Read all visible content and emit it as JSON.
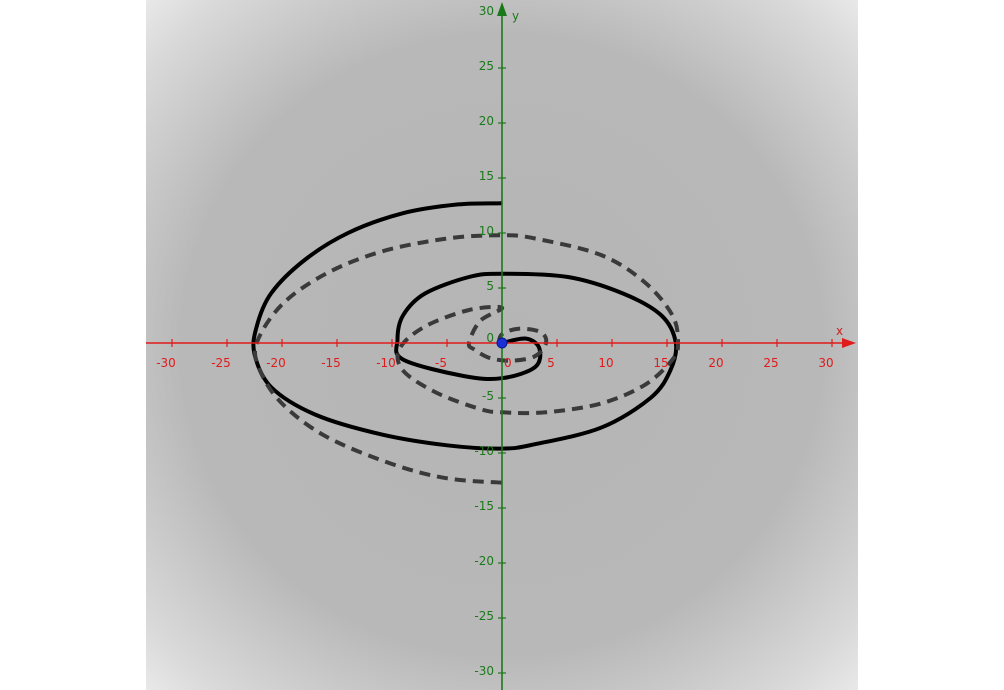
{
  "chart_data": {
    "type": "line",
    "title": "",
    "xlabel": "x",
    "ylabel": "y",
    "xlim": [
      -32,
      32
    ],
    "ylim": [
      -31,
      31
    ],
    "grid": false,
    "colors": {
      "background": "#b5b5b5",
      "x_axis": "#e01b1b",
      "y_axis": "#1a7a1a",
      "curve_solid": "#000000",
      "curve_dashed": "#3a3a3a",
      "point": "#1a2fd6"
    },
    "x_ticks": [
      {
        "value": -30,
        "label": "-30"
      },
      {
        "value": -25,
        "label": "-25"
      },
      {
        "value": -20,
        "label": "-20"
      },
      {
        "value": -15,
        "label": "-15"
      },
      {
        "value": -10,
        "label": "-10"
      },
      {
        "value": -5,
        "label": "-5"
      },
      {
        "value": 0,
        "label": "0"
      },
      {
        "value": 5,
        "label": "5"
      },
      {
        "value": 10,
        "label": "10"
      },
      {
        "value": 15,
        "label": "15"
      },
      {
        "value": 20,
        "label": "20"
      },
      {
        "value": 25,
        "label": "25"
      },
      {
        "value": 30,
        "label": "30"
      }
    ],
    "y_ticks": [
      {
        "value": 30,
        "label": "30"
      },
      {
        "value": 25,
        "label": "25"
      },
      {
        "value": 20,
        "label": "20"
      },
      {
        "value": 15,
        "label": "15"
      },
      {
        "value": 10,
        "label": "10"
      },
      {
        "value": 5,
        "label": "5"
      },
      {
        "value": 0,
        "label": "0"
      },
      {
        "value": -5,
        "label": "-5"
      },
      {
        "value": -10,
        "label": "-10"
      },
      {
        "value": -15,
        "label": "-15"
      },
      {
        "value": -20,
        "label": "-20"
      },
      {
        "value": -25,
        "label": "-25"
      },
      {
        "value": -30,
        "label": "-30"
      }
    ],
    "series": [
      {
        "style": "solid",
        "points": [
          [
            0,
            0
          ],
          [
            2.2,
            0.4
          ],
          [
            3.4,
            -0.5
          ],
          [
            3.0,
            -2.2
          ],
          [
            0,
            -3.2
          ],
          [
            -3.5,
            -3.0
          ],
          [
            -9.0,
            -1.5
          ],
          [
            -9.5,
            0.3
          ],
          [
            -9.0,
            2.5
          ],
          [
            -7.0,
            4.5
          ],
          [
            -3.0,
            6.0
          ],
          [
            0,
            6.3
          ],
          [
            6.0,
            6.0
          ],
          [
            11.0,
            4.5
          ],
          [
            14.5,
            2.5
          ],
          [
            15.8,
            0
          ],
          [
            15.3,
            -2.5
          ],
          [
            13.5,
            -5.0
          ],
          [
            9.0,
            -7.7
          ],
          [
            3.0,
            -9.2
          ],
          [
            0,
            -9.6
          ],
          [
            -5.0,
            -9.3
          ],
          [
            -11.0,
            -8.3
          ],
          [
            -17.0,
            -6.5
          ],
          [
            -21.0,
            -4.0
          ],
          [
            -22.5,
            -1.0
          ],
          [
            -22.3,
            1.5
          ],
          [
            -21.0,
            4.5
          ],
          [
            -18.0,
            7.5
          ],
          [
            -14.0,
            10.0
          ],
          [
            -9.0,
            11.8
          ],
          [
            -4.0,
            12.6
          ],
          [
            0,
            12.7
          ]
        ]
      },
      {
        "style": "dashed",
        "points": [
          [
            -0.3,
            0
          ],
          [
            0,
            0.8
          ],
          [
            1.5,
            1.3
          ],
          [
            3.5,
            1.0
          ],
          [
            4.0,
            0
          ],
          [
            3.0,
            -1.2
          ],
          [
            1.0,
            -1.6
          ],
          [
            -1.0,
            -1.4
          ],
          [
            -2.5,
            -0.6
          ],
          [
            -3.0,
            0
          ],
          [
            -2.0,
            2.0
          ],
          [
            0,
            3.2
          ],
          [
            -3.0,
            3.0
          ],
          [
            -7.0,
            1.5
          ],
          [
            -9.3,
            -0.5
          ],
          [
            -9.0,
            -2.5
          ],
          [
            -6.0,
            -4.5
          ],
          [
            -2.0,
            -6.0
          ],
          [
            0,
            -6.3
          ],
          [
            4.0,
            -6.3
          ],
          [
            9.0,
            -5.5
          ],
          [
            13.0,
            -3.8
          ],
          [
            15.5,
            -1.5
          ],
          [
            16.0,
            0
          ],
          [
            15.5,
            2.5
          ],
          [
            13.0,
            5.5
          ],
          [
            9.0,
            8.0
          ],
          [
            3.0,
            9.5
          ],
          [
            0,
            9.8
          ],
          [
            -5.0,
            9.5
          ],
          [
            -11.0,
            8.3
          ],
          [
            -16.0,
            6.3
          ],
          [
            -20.0,
            3.5
          ],
          [
            -22.3,
            0
          ],
          [
            -22.0,
            -2.5
          ],
          [
            -20.0,
            -5.5
          ],
          [
            -16.0,
            -8.5
          ],
          [
            -10.0,
            -11.0
          ],
          [
            -5.0,
            -12.3
          ],
          [
            0,
            -12.7
          ]
        ]
      }
    ],
    "marker": {
      "x": 0,
      "y": 0
    }
  }
}
